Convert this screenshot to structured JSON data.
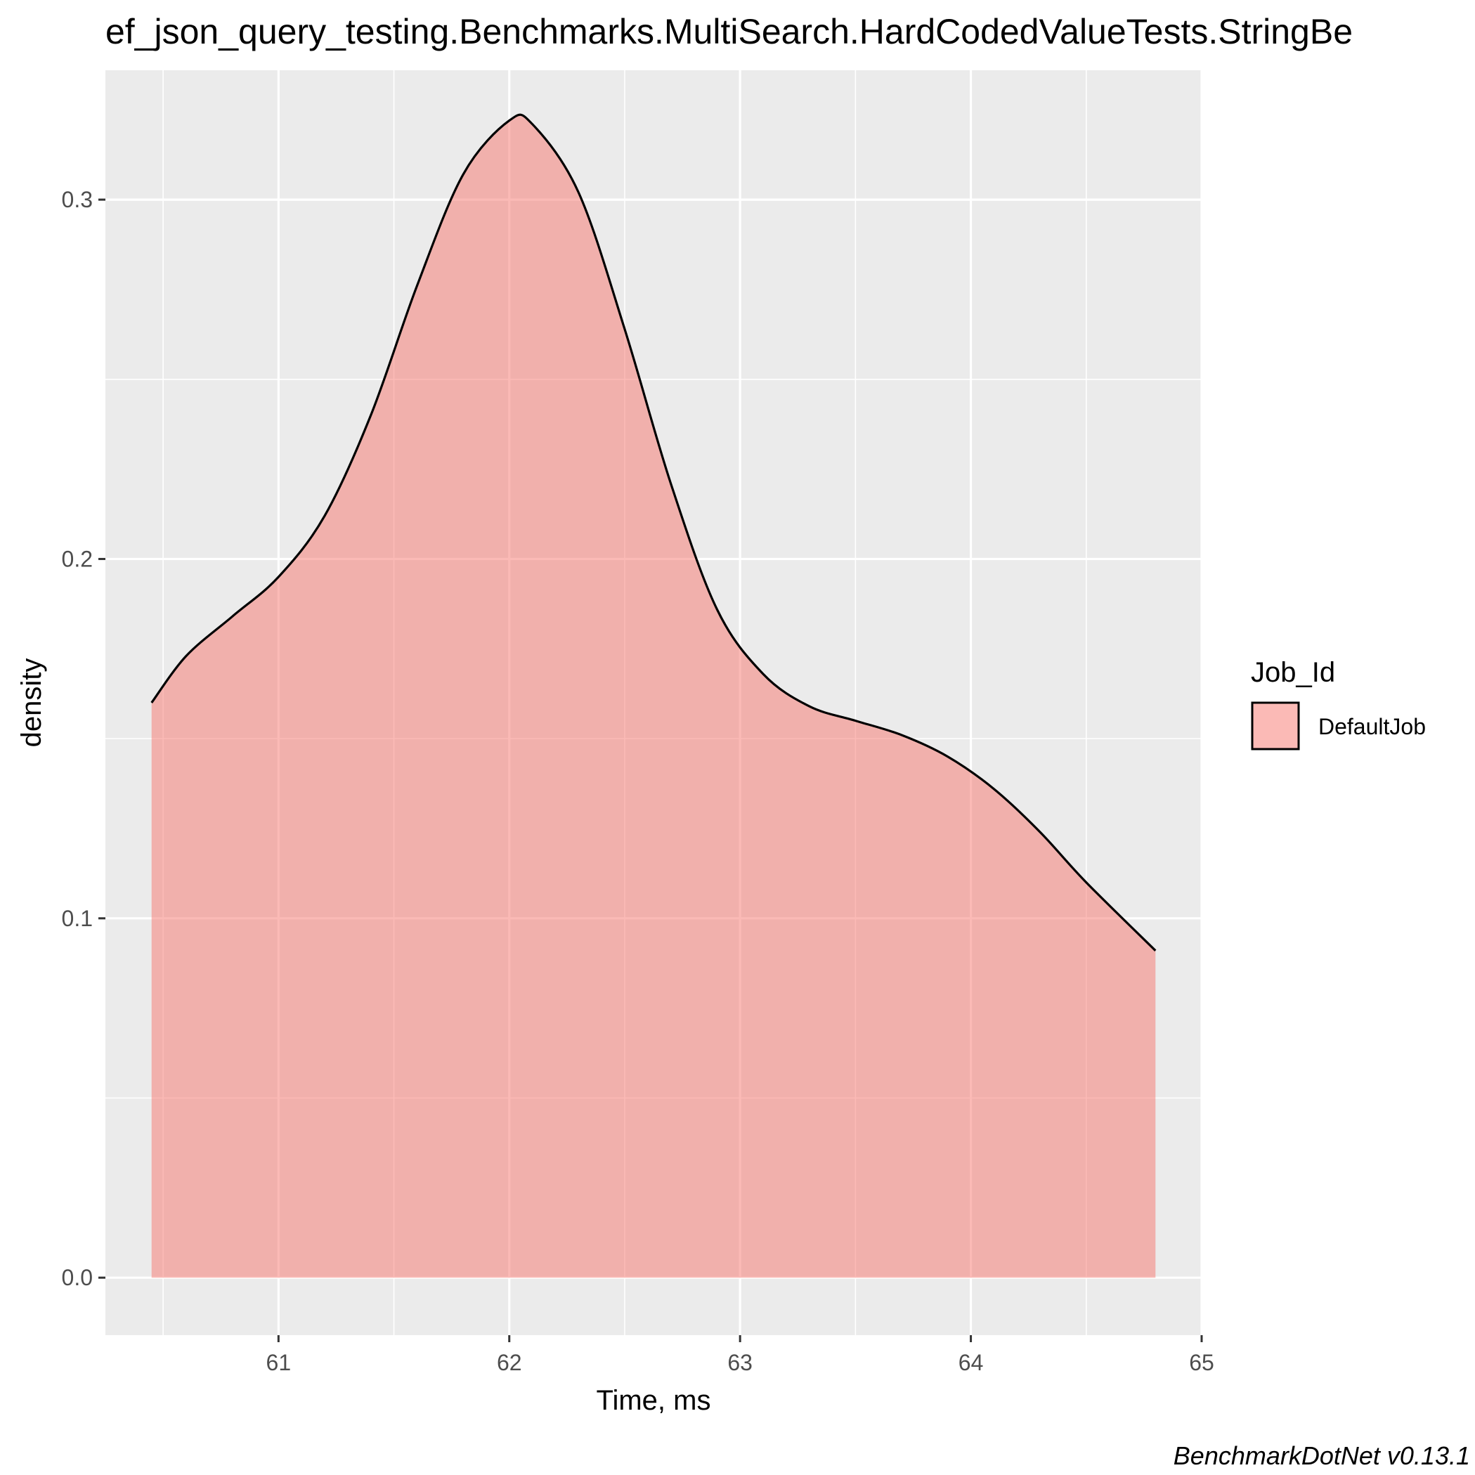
{
  "chart_data": {
    "type": "area",
    "title": "ef_json_query_testing.Benchmarks.MultiSearch.HardCodedValueTests.StringBe",
    "xlabel": "Time, ms",
    "ylabel": "density",
    "caption": "BenchmarkDotNet v0.13.1",
    "xlim": [
      60.25,
      65.0
    ],
    "ylim": [
      -0.016,
      0.336
    ],
    "x_ticks": [
      61,
      62,
      63,
      64,
      65
    ],
    "y_ticks": [
      0.0,
      0.1,
      0.2,
      0.3
    ],
    "y_tick_labels": [
      "0.0",
      "0.1",
      "0.2",
      "0.3"
    ],
    "grid": true,
    "legend": {
      "position": "right",
      "title": "Job_Id",
      "entries": [
        "DefaultJob"
      ]
    },
    "colors": {
      "fill": "#F8766D",
      "panel": "#EBEBEB",
      "grid": "#FFFFFF",
      "line": "#000000"
    },
    "series": [
      {
        "name": "DefaultJob",
        "x": [
          60.45,
          60.6,
          60.8,
          61.0,
          61.2,
          61.4,
          61.6,
          61.8,
          62.0,
          62.1,
          62.3,
          62.5,
          62.7,
          62.9,
          63.1,
          63.3,
          63.5,
          63.7,
          63.9,
          64.1,
          64.3,
          64.5,
          64.8
        ],
        "values": [
          0.16,
          0.173,
          0.184,
          0.195,
          0.212,
          0.24,
          0.276,
          0.307,
          0.322,
          0.321,
          0.302,
          0.264,
          0.221,
          0.186,
          0.168,
          0.159,
          0.155,
          0.151,
          0.145,
          0.136,
          0.124,
          0.11,
          0.091
        ]
      }
    ]
  }
}
